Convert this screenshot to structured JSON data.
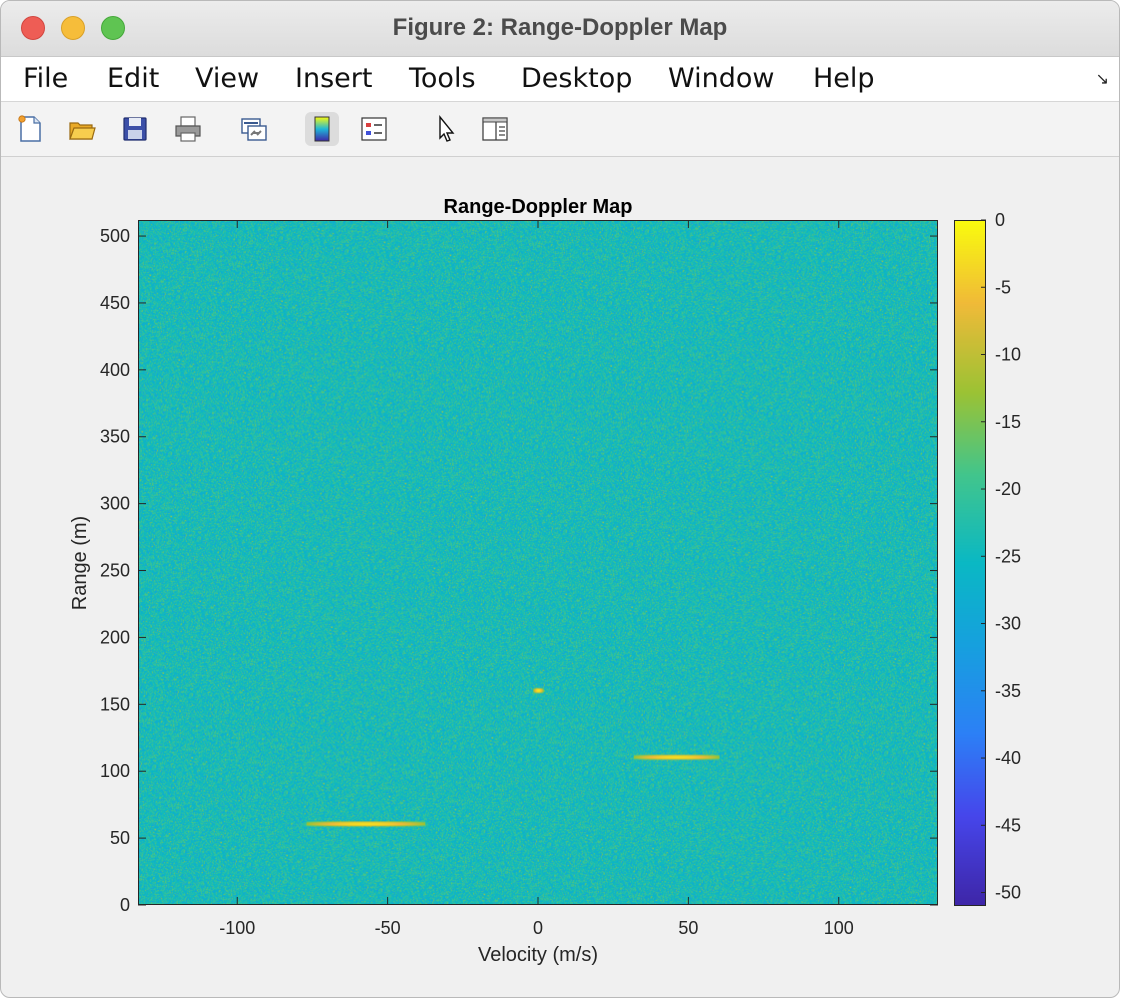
{
  "window": {
    "title": "Figure 2: Range-Doppler Map"
  },
  "menu": [
    "File",
    "Edit",
    "View",
    "Insert",
    "Tools",
    "Desktop",
    "Window",
    "Help"
  ],
  "toolbar": {
    "icons": [
      "new-figure-icon",
      "open-file-icon",
      "save-icon",
      "print-icon",
      "link-plot-icon",
      "insert-colorbar-icon",
      "insert-legend-icon",
      "edit-plot-icon",
      "property-editor-icon"
    ]
  },
  "colors": {
    "colormap": "parula",
    "axes_text": "#262626"
  },
  "chart_data": {
    "type": "heatmap",
    "title": "Range-Doppler Map",
    "xlabel": "Velocity (m/s)",
    "ylabel": "Range (m)",
    "xlim": [
      -133,
      133
    ],
    "ylim": [
      0,
      512
    ],
    "xticks": [
      -100,
      -50,
      0,
      50,
      100
    ],
    "yticks": [
      0,
      50,
      100,
      150,
      200,
      250,
      300,
      350,
      400,
      450,
      500
    ],
    "colorbar": {
      "min": -51,
      "max": 0,
      "ticks": [
        0,
        -5,
        -10,
        -15,
        -20,
        -25,
        -30,
        -35,
        -40,
        -45,
        -50
      ]
    },
    "background_level_db": -24,
    "targets": [
      {
        "velocity_from": -77,
        "velocity_to": -38,
        "range": 60,
        "peak_db": -3
      },
      {
        "velocity_from": 32,
        "velocity_to": 60,
        "range": 110,
        "peak_db": -3
      },
      {
        "velocity_from": -1.5,
        "velocity_to": 1.5,
        "range": 160,
        "peak_db": -2
      }
    ]
  }
}
